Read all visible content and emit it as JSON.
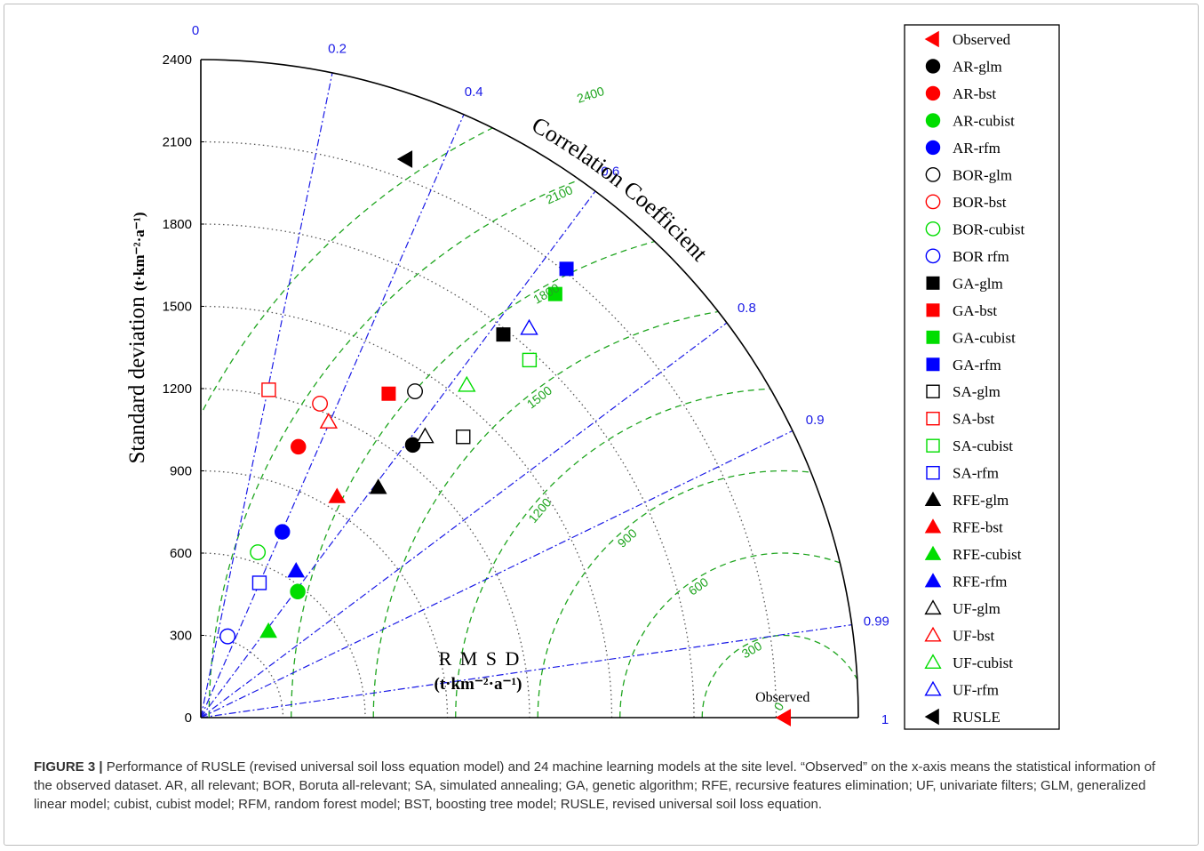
{
  "chart_data": {
    "type": "scatter",
    "subtype": "taylor-diagram",
    "ylabel": "Standard deviation",
    "ylabel_unit": "(t·km⁻²·a⁻¹)",
    "arc_label": "Correlation Coefficient",
    "rmsd_label": "R M S D",
    "rmsd_unit": "(t·km⁻²·a⁻¹)",
    "std_range": [
      0,
      2400
    ],
    "std_ticks": [
      "0",
      "300",
      "600",
      "900",
      "1200",
      "1500",
      "1800",
      "2100",
      "2400"
    ],
    "std_tick_values": [
      0,
      300,
      600,
      900,
      1200,
      1500,
      1800,
      2100,
      2400
    ],
    "correlation_ticks": [
      "0",
      "0.2",
      "0.4",
      "0.6",
      "0.8",
      "0.9",
      "0.99",
      "1"
    ],
    "correlation_values": [
      0,
      0.2,
      0.4,
      0.6,
      0.8,
      0.9,
      0.99,
      1
    ],
    "rmsd_contours": [
      "0",
      "300",
      "600",
      "900",
      "1200",
      "1500",
      "1800",
      "2100",
      "2400"
    ],
    "rmsd_contour_values": [
      0,
      300,
      600,
      900,
      1200,
      1500,
      1800,
      2100,
      2400
    ],
    "reference": {
      "label": "Observed",
      "std": 2130,
      "correlation": 1
    },
    "series": [
      {
        "name": "Observed",
        "marker": "tri-left",
        "filled": true,
        "color": "#ff0000",
        "std": 2130,
        "correlation": 1,
        "plotted": false
      },
      {
        "name": "AR-glm",
        "marker": "circle",
        "filled": true,
        "color": "#000000",
        "std": 1260,
        "correlation": 0.614
      },
      {
        "name": "AR-bst",
        "marker": "circle",
        "filled": true,
        "color": "#ff0000",
        "std": 1050,
        "correlation": 0.339
      },
      {
        "name": "AR-cubist",
        "marker": "circle",
        "filled": true,
        "color": "#00dd00",
        "std": 580,
        "correlation": 0.61
      },
      {
        "name": "AR-rfm",
        "marker": "circle",
        "filled": true,
        "color": "#0000ff",
        "std": 740,
        "correlation": 0.402
      },
      {
        "name": "BOR-glm",
        "marker": "circle",
        "filled": false,
        "color": "#000000",
        "std": 1424,
        "correlation": 0.549
      },
      {
        "name": "BOR-bst",
        "marker": "circle",
        "filled": false,
        "color": "#ff0000",
        "std": 1225,
        "correlation": 0.355
      },
      {
        "name": "BOR-cubist",
        "marker": "circle",
        "filled": false,
        "color": "#00dd00",
        "std": 638,
        "correlation": 0.326
      },
      {
        "name": "BOR rfm",
        "marker": "circle",
        "filled": false,
        "color": "#0000ff",
        "std": 312,
        "correlation": 0.313
      },
      {
        "name": "GA-glm",
        "marker": "square",
        "filled": true,
        "color": "#000000",
        "std": 1781,
        "correlation": 0.62
      },
      {
        "name": "GA-bst",
        "marker": "square",
        "filled": true,
        "color": "#ff0000",
        "std": 1366,
        "correlation": 0.502
      },
      {
        "name": "GA-cubist",
        "marker": "square",
        "filled": true,
        "color": "#00dd00",
        "std": 2015,
        "correlation": 0.642
      },
      {
        "name": "GA-rfm",
        "marker": "square",
        "filled": true,
        "color": "#0000ff",
        "std": 2112,
        "correlation": 0.632
      },
      {
        "name": "SA-glm",
        "marker": "square",
        "filled": false,
        "color": "#000000",
        "std": 1402,
        "correlation": 0.683
      },
      {
        "name": "SA-bst",
        "marker": "square",
        "filled": false,
        "color": "#ff0000",
        "std": 1221,
        "correlation": 0.203
      },
      {
        "name": "SA-cubist",
        "marker": "square",
        "filled": false,
        "color": "#00dd00",
        "std": 1772,
        "correlation": 0.677
      },
      {
        "name": "SA-rfm",
        "marker": "square",
        "filled": false,
        "color": "#0000ff",
        "std": 536,
        "correlation": 0.399
      },
      {
        "name": "RFE-glm",
        "marker": "triangle",
        "filled": true,
        "color": "#000000",
        "std": 1060,
        "correlation": 0.611
      },
      {
        "name": "RFE-bst",
        "marker": "triangle",
        "filled": true,
        "color": "#ff0000",
        "std": 947,
        "correlation": 0.525
      },
      {
        "name": "RFE-cubist",
        "marker": "triangle",
        "filled": true,
        "color": "#00dd00",
        "std": 400,
        "correlation": 0.617
      },
      {
        "name": "RFE-rfm",
        "marker": "triangle",
        "filled": true,
        "color": "#0000ff",
        "std": 638,
        "correlation": 0.545
      },
      {
        "name": "UF-glm",
        "marker": "triangle",
        "filled": false,
        "color": "#000000",
        "std": 1312,
        "correlation": 0.624
      },
      {
        "name": "UF-bst",
        "marker": "triangle",
        "filled": false,
        "color": "#ff0000",
        "std": 1175,
        "correlation": 0.397
      },
      {
        "name": "UF-cubist",
        "marker": "triangle",
        "filled": false,
        "color": "#00dd00",
        "std": 1553,
        "correlation": 0.625
      },
      {
        "name": "UF-rfm",
        "marker": "triangle",
        "filled": false,
        "color": "#0000ff",
        "std": 1858,
        "correlation": 0.645
      },
      {
        "name": "RUSLE",
        "marker": "tri-left",
        "filled": true,
        "color": "#000000",
        "std": 2170,
        "correlation": 0.345
      }
    ],
    "legend_position": "right",
    "grid": true
  },
  "colors": {
    "std_grid": "#555555",
    "rmsd": "#1fa51f",
    "correlation": "#1a1ae6"
  },
  "caption": {
    "label": "FIGURE 3 |",
    "text": " Performance of RUSLE (revised universal soil loss equation model) and 24 machine learning models at the site level. “Observed” on the x-axis means the statistical information of the observed dataset. AR, all relevant; BOR, Boruta all-relevant; SA, simulated annealing; GA, genetic algorithm; RFE, recursive features elimination; UF, univariate filters; GLM, generalized linear model; cubist, cubist model; RFM, random forest model; BST, boosting tree model; RUSLE, revised universal soil loss equation."
  }
}
